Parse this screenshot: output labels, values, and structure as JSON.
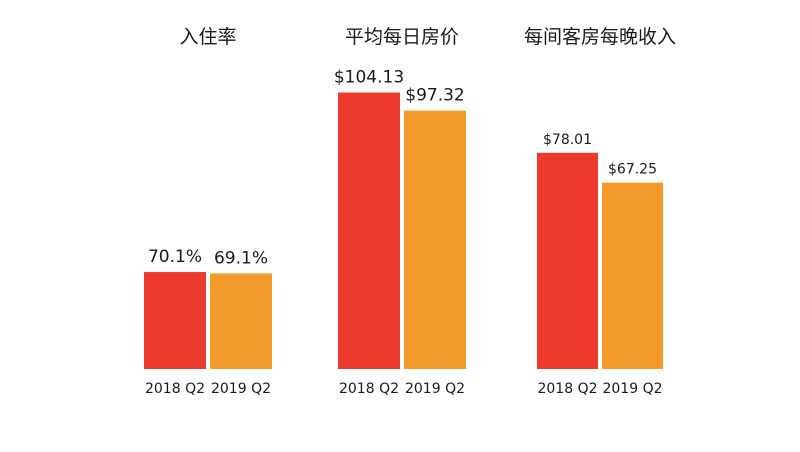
{
  "chart_data": [
    {
      "type": "bar",
      "title": "入住率",
      "categories": [
        "2018 Q2",
        "2019 Q2"
      ],
      "values": [
        70.1,
        69.1
      ],
      "value_labels": [
        "70.1%",
        "69.1%"
      ],
      "unit": "%",
      "ylim": [
        0,
        100
      ],
      "colors": [
        "#ee3a2c",
        "#f39a2b"
      ]
    },
    {
      "type": "bar",
      "title": "平均每日房价",
      "categories": [
        "2018 Q2",
        "2019 Q2"
      ],
      "values": [
        104.13,
        97.32
      ],
      "value_labels": [
        "$104.13",
        "$97.32"
      ],
      "unit": "$",
      "ylim": [
        0,
        110
      ],
      "colors": [
        "#ee3a2c",
        "#f39a2b"
      ]
    },
    {
      "type": "bar",
      "title": "每间客房每晚收入",
      "categories": [
        "2018 Q2",
        "2019 Q2"
      ],
      "values": [
        78.01,
        67.25
      ],
      "value_labels": [
        "$78.01",
        "$67.25"
      ],
      "unit": "$",
      "ylim": [
        0,
        110
      ],
      "colors": [
        "#ee3a2c",
        "#f39a2b"
      ]
    }
  ]
}
